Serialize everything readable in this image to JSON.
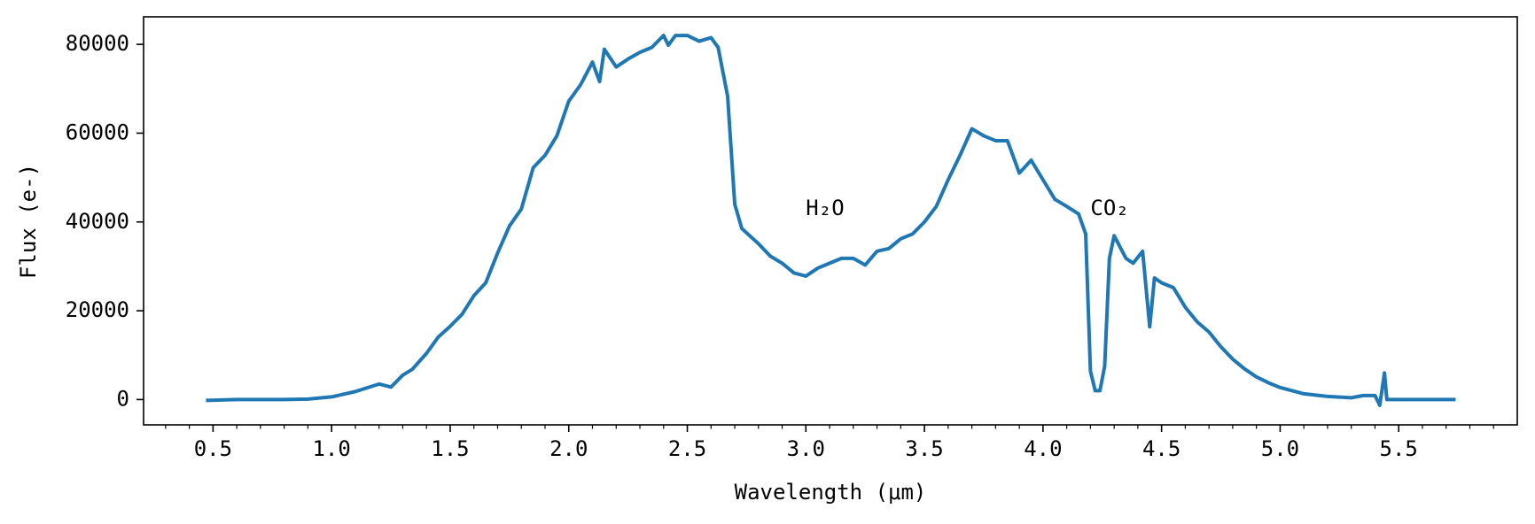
{
  "chart_data": {
    "type": "line",
    "xlabel": "Wavelength (μm)",
    "ylabel": "Flux (e-)",
    "x": [
      0.47,
      0.6,
      0.7,
      0.8,
      0.9,
      1.0,
      1.1,
      1.2,
      1.25,
      1.3,
      1.34,
      1.4,
      1.45,
      1.5,
      1.55,
      1.6,
      1.65,
      1.7,
      1.75,
      1.8,
      1.85,
      1.9,
      1.95,
      2.0,
      2.05,
      2.1,
      2.13,
      2.15,
      2.2,
      2.25,
      2.3,
      2.35,
      2.4,
      2.42,
      2.45,
      2.5,
      2.55,
      2.6,
      2.63,
      2.67,
      2.7,
      2.73,
      2.8,
      2.85,
      2.9,
      2.95,
      3.0,
      3.05,
      3.1,
      3.15,
      3.2,
      3.25,
      3.3,
      3.35,
      3.4,
      3.45,
      3.5,
      3.55,
      3.6,
      3.65,
      3.7,
      3.75,
      3.8,
      3.85,
      3.9,
      3.95,
      4.0,
      4.05,
      4.1,
      4.15,
      4.18,
      4.2,
      4.22,
      4.24,
      4.26,
      4.28,
      4.3,
      4.35,
      4.38,
      4.42,
      4.45,
      4.47,
      4.5,
      4.55,
      4.6,
      4.65,
      4.7,
      4.75,
      4.8,
      4.85,
      4.9,
      4.95,
      5.0,
      5.1,
      5.2,
      5.3,
      5.35,
      5.4,
      5.42,
      5.44,
      5.45,
      5.5,
      5.6,
      5.74
    ],
    "series": [
      {
        "name": "Flux",
        "color": "#1f77b4",
        "values": [
          -200,
          0,
          0,
          0,
          100,
          600,
          1800,
          3500,
          2800,
          5500,
          6800,
          10400,
          14100,
          16500,
          19200,
          23400,
          26300,
          33000,
          39100,
          42900,
          52200,
          55000,
          59400,
          67200,
          70900,
          76000,
          71600,
          78900,
          74900,
          76700,
          78200,
          79300,
          82000,
          79800,
          82000,
          82000,
          80700,
          81500,
          79300,
          68300,
          44000,
          38500,
          35100,
          32300,
          30700,
          28500,
          27800,
          29600,
          30700,
          31800,
          31800,
          30300,
          33400,
          34000,
          36200,
          37300,
          40000,
          43500,
          49500,
          55000,
          61000,
          59400,
          58300,
          58300,
          51000,
          53900,
          49500,
          45100,
          43500,
          41800,
          37300,
          6400,
          2000,
          2000,
          7500,
          31800,
          36900,
          31800,
          30700,
          33400,
          16400,
          27400,
          26300,
          25200,
          20800,
          17500,
          15200,
          11900,
          9100,
          6900,
          5100,
          3800,
          2700,
          1300,
          700,
          400,
          900,
          900,
          -1300,
          6000,
          0,
          0,
          0,
          0
        ]
      }
    ],
    "annotations": [
      {
        "text": "H₂O",
        "x": 3.0,
        "y": 41500
      },
      {
        "text": "CO₂",
        "x": 4.2,
        "y": 41500
      }
    ],
    "xlim": [
      0.207,
      6.0
    ],
    "ylim": [
      -5700,
      86200
    ],
    "xticks": [
      {
        "value": 0.5,
        "label": "0.5"
      },
      {
        "value": 1.0,
        "label": "1.0"
      },
      {
        "value": 1.5,
        "label": "1.5"
      },
      {
        "value": 2.0,
        "label": "2.0"
      },
      {
        "value": 2.5,
        "label": "2.5"
      },
      {
        "value": 3.0,
        "label": "3.0"
      },
      {
        "value": 3.5,
        "label": "3.5"
      },
      {
        "value": 4.0,
        "label": "4.0"
      },
      {
        "value": 4.5,
        "label": "4.5"
      },
      {
        "value": 5.0,
        "label": "5.0"
      },
      {
        "value": 5.5,
        "label": "5.5"
      }
    ],
    "xminorticks": [
      0.3,
      0.4,
      0.6,
      0.7,
      0.8,
      0.9,
      1.1,
      1.2,
      1.3,
      1.4,
      1.6,
      1.7,
      1.8,
      1.9,
      2.1,
      2.2,
      2.3,
      2.4,
      2.6,
      2.7,
      2.8,
      2.9,
      3.1,
      3.2,
      3.3,
      3.4,
      3.6,
      3.7,
      3.8,
      3.9,
      4.1,
      4.2,
      4.3,
      4.4,
      4.6,
      4.7,
      4.8,
      4.9,
      5.1,
      5.2,
      5.3,
      5.4,
      5.6,
      5.7,
      5.8,
      5.9
    ],
    "yticks": [
      0,
      20000,
      40000,
      60000,
      80000
    ],
    "grid": false
  }
}
